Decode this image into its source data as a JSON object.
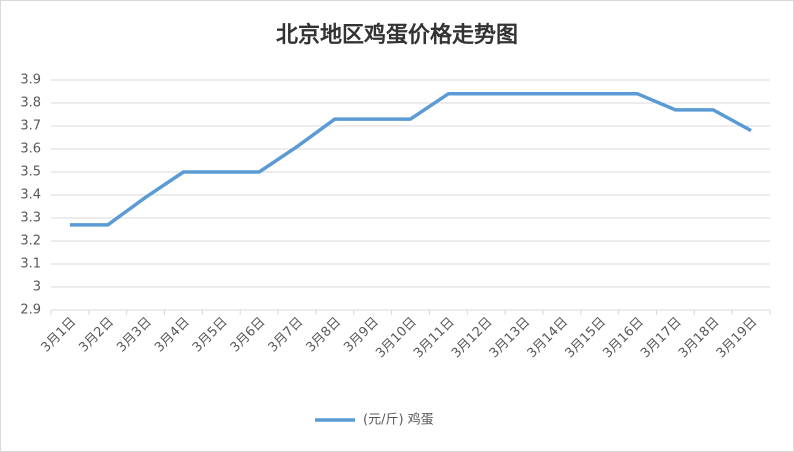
{
  "chart_data": {
    "type": "line",
    "title": "北京地区鸡蛋价格走势图",
    "categories": [
      "3月1日",
      "3月2日",
      "3月3日",
      "3月4日",
      "3月5日",
      "3月6日",
      "3月7日",
      "3月8日",
      "3月9日",
      "3月10日",
      "3月11日",
      "3月12日",
      "3月13日",
      "3月14日",
      "3月15日",
      "3月16日",
      "3月17日",
      "3月18日",
      "3月19日"
    ],
    "series": [
      {
        "name": "(元/斤) 鸡蛋",
        "color": "#5b9bd5",
        "values": [
          3.27,
          3.27,
          3.39,
          3.5,
          3.5,
          3.5,
          3.61,
          3.73,
          3.73,
          3.73,
          3.84,
          3.84,
          3.84,
          3.84,
          3.84,
          3.84,
          3.77,
          3.77,
          3.68
        ]
      }
    ],
    "ylim": [
      2.9,
      3.9
    ],
    "yticks": [
      2.9,
      3,
      3.1,
      3.2,
      3.3,
      3.4,
      3.5,
      3.6,
      3.7,
      3.8,
      3.9
    ],
    "grid": true,
    "legend": "bottom"
  }
}
